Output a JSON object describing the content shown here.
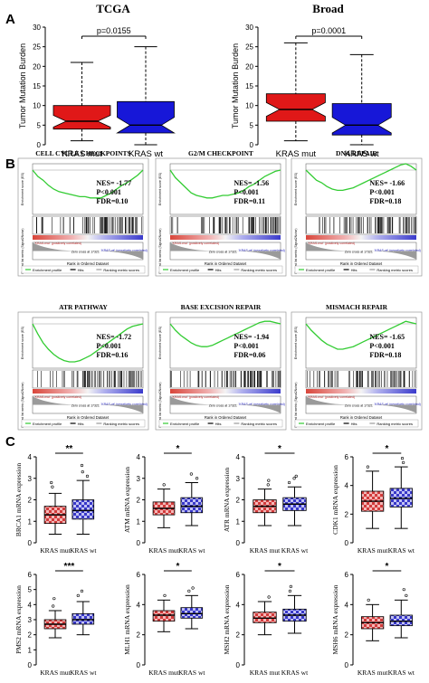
{
  "panel_letters": {
    "a": "A",
    "b": "B",
    "c": "C"
  },
  "colors": {
    "mut": "#e01818",
    "wt": "#1717d8",
    "gsea_line": "#33cc33",
    "hit": "#111111",
    "heat_red": "#d9463b",
    "heat_blue": "#3a3acc"
  },
  "chart_data": [
    {
      "id": "a1",
      "type": "box",
      "title": "TCGA",
      "ylabel": "Tumor Mutation Burden",
      "categories": [
        "KRAS mut",
        "KRAS wt"
      ],
      "ylim": [
        0,
        30
      ],
      "yticks": [
        0,
        5,
        10,
        15,
        20,
        25,
        30
      ],
      "annotation": "p=0.0155",
      "series": [
        {
          "category": "KRAS mut",
          "min": 1,
          "q1": 4,
          "median": 6,
          "q3": 10,
          "max": 21
        },
        {
          "category": "KRAS wt",
          "min": 0,
          "q1": 3,
          "median": 5,
          "q3": 11,
          "max": 25
        }
      ]
    },
    {
      "id": "a2",
      "type": "box",
      "title": "Broad",
      "ylabel": "Tumor Mutation Burden",
      "categories": [
        "KRAS mut",
        "KRAS wt"
      ],
      "ylim": [
        0,
        30
      ],
      "yticks": [
        0,
        5,
        10,
        15,
        20,
        25,
        30
      ],
      "annotation": "p=0.0001",
      "series": [
        {
          "category": "KRAS mut",
          "min": 1,
          "q1": 6,
          "median": 9,
          "q3": 13,
          "max": 26
        },
        {
          "category": "KRAS wt",
          "min": 0,
          "q1": 2.5,
          "median": 5,
          "q3": 10.5,
          "max": 23
        }
      ]
    },
    {
      "id": "b1",
      "type": "line",
      "title": "CELL CYCLE CHECKPOINTS",
      "nes": "NES= -1.77",
      "p": "P<0.001",
      "fdr": "FDR=0.10",
      "ylabel": "Enrichment score (ES)",
      "xlabel": "Rank in Ordered Dataset",
      "ylabel2": "Ranked list metric (Signal2Noise)",
      "heat_left": "'KRAS-mut' (positively correlated)",
      "heat_right": "'KRAS-wt' (negatively correlated)",
      "zero_label": "Zero cross at 17321",
      "legend": [
        "Enrichment profile",
        "Hits",
        "Ranking metric scores"
      ],
      "es": [
        0,
        0.05,
        0.08,
        0.12,
        0.15,
        0.17,
        0.18,
        0.19,
        0.2,
        0.21,
        0.21,
        0.22,
        0.22,
        0.22,
        0.2,
        0.18,
        0.15,
        0.12,
        0.1,
        0.07,
        0.04,
        0.0
      ]
    },
    {
      "id": "b2",
      "type": "line",
      "title": "G2/M CHECKPOINT",
      "nes": "NES= -1.56",
      "p": "P<0.001",
      "fdr": "FDR=0.11",
      "ylabel": "Enrichment score (ES)",
      "xlabel": "Rank in Ordered Dataset",
      "ylabel2": "Ranked list metric (Signal2Noise)",
      "heat_left": "'KRAS-mut' (positively correlated)",
      "heat_right": "'KRAS-wt' (negatively correlated)",
      "zero_label": "Zero cross at 17321",
      "legend": [
        "Enrichment profile",
        "Hits",
        "Ranking metric scores"
      ],
      "es": [
        0,
        0.06,
        0.1,
        0.14,
        0.18,
        0.2,
        0.21,
        0.22,
        0.22,
        0.21,
        0.2,
        0.2,
        0.19,
        0.18,
        0.16,
        0.13,
        0.11,
        0.08,
        0.05,
        0.03,
        0.01,
        0.0
      ]
    },
    {
      "id": "b3",
      "type": "line",
      "title": "DNA REPAIR",
      "nes": "NES= -1.66",
      "p": "P<0.001",
      "fdr": "FDR=0.18",
      "ylabel": "Enrichment score (ES)",
      "xlabel": "Rank in Ordered Dataset",
      "ylabel2": "Ranked list metric (Signal2Noise)",
      "heat_left": "'KRAS-mut' (positively correlated)",
      "heat_right": "'KRAS-wt' (negatively correlated)",
      "zero_label": "Zero cross at 17321",
      "legend": [
        "Enrichment profile",
        "Hits",
        "Ranking metric scores"
      ],
      "es": [
        0,
        0.04,
        0.08,
        0.1,
        0.13,
        0.15,
        0.16,
        0.16,
        0.15,
        0.14,
        0.12,
        0.1,
        0.08,
        0.06,
        0.04,
        0.02,
        0.0,
        -0.02,
        -0.04,
        -0.05,
        -0.03,
        0.0
      ]
    },
    {
      "id": "b4",
      "type": "line",
      "title": "ATR PATHWAY",
      "nes": "NES= -1.72",
      "p": "P<0.001",
      "fdr": "FDR=0.16",
      "ylabel": "Enrichment score (ES)",
      "xlabel": "Rank in Ordered Dataset",
      "ylabel2": "Ranked list metric (Signal2Noise)",
      "heat_left": "'KRAS-mut' (positively correlated)",
      "heat_right": "'KRAS-wt' (negatively correlated)",
      "zero_label": "Zero cross at 17321",
      "legend": [
        "Enrichment profile",
        "Hits",
        "Ranking metric scores"
      ],
      "es": [
        0,
        0.08,
        0.15,
        0.2,
        0.24,
        0.27,
        0.29,
        0.3,
        0.3,
        0.29,
        0.27,
        0.25,
        0.22,
        0.19,
        0.16,
        0.13,
        0.1,
        0.07,
        0.04,
        0.02,
        0.01,
        0.0
      ]
    },
    {
      "id": "b5",
      "type": "line",
      "title": "BASE EXCISION REPAIR",
      "nes": "NES= -1.94",
      "p": "P<0.001",
      "fdr": "FDR=0.06",
      "ylabel": "Enrichment score (ES)",
      "xlabel": "Rank in Ordered Dataset",
      "ylabel2": "Ranked list metric (Signal2Noise)",
      "heat_left": "'KRAS-mut' (positively correlated)",
      "heat_right": "'KRAS-wt' (negatively correlated)",
      "zero_label": "Zero cross at 17321",
      "legend": [
        "Enrichment profile",
        "Hits",
        "Ranking metric scores"
      ],
      "es": [
        0,
        0.05,
        0.09,
        0.12,
        0.15,
        0.17,
        0.18,
        0.18,
        0.17,
        0.15,
        0.13,
        0.11,
        0.09,
        0.07,
        0.05,
        0.03,
        0.01,
        -0.01,
        -0.02,
        -0.02,
        -0.01,
        0.0
      ]
    },
    {
      "id": "b6",
      "type": "line",
      "title": "MISMACH REPAIR",
      "nes": "NES= -1.65",
      "p": "P<0.001",
      "fdr": "FDR=0.18",
      "ylabel": "Enrichment score (ES)",
      "xlabel": "Rank in Ordered Dataset",
      "ylabel2": "Ranked list metric (Signal2Noise)",
      "heat_left": "'KRAS-mut' (positively correlated)",
      "heat_right": "'KRAS-wt' (negatively correlated)",
      "zero_label": "Zero cross at 17321",
      "legend": [
        "Enrichment profile",
        "Hits",
        "Ranking metric scores"
      ],
      "es": [
        0,
        0.05,
        0.09,
        0.13,
        0.16,
        0.18,
        0.2,
        0.2,
        0.19,
        0.18,
        0.16,
        0.14,
        0.12,
        0.1,
        0.08,
        0.06,
        0.04,
        0.02,
        0.0,
        -0.02,
        -0.01,
        0.0
      ]
    },
    {
      "id": "c1",
      "type": "box",
      "ylabel": "BRCA1 mRNA expression",
      "sig": "**",
      "categories": [
        "KRAS mut",
        "KRAS wt"
      ],
      "ylim": [
        0,
        4
      ],
      "yticks": [
        0,
        1,
        2,
        3,
        4
      ],
      "series": [
        {
          "category": "KRAS mut",
          "min": 0.4,
          "q1": 0.9,
          "median": 1.3,
          "q3": 1.7,
          "max": 2.3,
          "outliers": [
            2.6,
            2.8
          ]
        },
        {
          "category": "KRAS wt",
          "min": 0.4,
          "q1": 1.1,
          "median": 1.5,
          "q3": 2.0,
          "max": 2.9,
          "outliers": [
            3.1,
            3.3,
            3.6
          ]
        }
      ]
    },
    {
      "id": "c2",
      "type": "box",
      "ylabel": "ATM mRNA expression",
      "sig": "*",
      "categories": [
        "KRAS mut",
        "KRAS wt"
      ],
      "ylim": [
        0,
        4
      ],
      "yticks": [
        0,
        1,
        2,
        3,
        4
      ],
      "series": [
        {
          "category": "KRAS mut",
          "min": 0.7,
          "q1": 1.3,
          "median": 1.6,
          "q3": 1.9,
          "max": 2.5,
          "outliers": [
            2.7
          ]
        },
        {
          "category": "KRAS wt",
          "min": 0.8,
          "q1": 1.4,
          "median": 1.7,
          "q3": 2.1,
          "max": 2.8,
          "outliers": [
            3.0,
            3.2
          ]
        }
      ]
    },
    {
      "id": "c3",
      "type": "box",
      "ylabel": "ATR mRNA expression",
      "sig": "*",
      "categories": [
        "KRAS mut",
        "KRAS wt"
      ],
      "ylim": [
        0,
        4
      ],
      "yticks": [
        0,
        1,
        2,
        3,
        4
      ],
      "series": [
        {
          "category": "KRAS mut",
          "min": 0.8,
          "q1": 1.4,
          "median": 1.7,
          "q3": 2.0,
          "max": 2.5,
          "outliers": [
            2.7,
            2.9
          ]
        },
        {
          "category": "KRAS wt",
          "min": 0.8,
          "q1": 1.5,
          "median": 1.8,
          "q3": 2.1,
          "max": 2.6,
          "outliers": [
            2.8,
            3.0,
            3.1
          ]
        }
      ]
    },
    {
      "id": "c4",
      "type": "box",
      "ylabel": "CDK1 mRNA expression",
      "sig": "*",
      "categories": [
        "KRAS mut",
        "KRAS wt"
      ],
      "ylim": [
        0,
        6
      ],
      "yticks": [
        0,
        2,
        4,
        6
      ],
      "series": [
        {
          "category": "KRAS mut",
          "min": 1.0,
          "q1": 2.2,
          "median": 2.9,
          "q3": 3.6,
          "max": 5.0,
          "outliers": [
            5.3
          ]
        },
        {
          "category": "KRAS wt",
          "min": 1.0,
          "q1": 2.5,
          "median": 3.1,
          "q3": 3.8,
          "max": 5.3,
          "outliers": [
            5.6,
            5.9
          ]
        }
      ]
    },
    {
      "id": "c5",
      "type": "box",
      "ylabel": "PMS2 mRNA expression",
      "sig": "***",
      "categories": [
        "KRAS mut",
        "KRAS wt"
      ],
      "ylim": [
        0,
        6
      ],
      "yticks": [
        0,
        1,
        2,
        3,
        4,
        5,
        6
      ],
      "series": [
        {
          "category": "KRAS mut",
          "min": 1.8,
          "q1": 2.4,
          "median": 2.7,
          "q3": 3.0,
          "max": 3.6,
          "outliers": [
            3.9,
            4.4
          ]
        },
        {
          "category": "KRAS wt",
          "min": 2.0,
          "q1": 2.7,
          "median": 3.0,
          "q3": 3.4,
          "max": 4.2,
          "outliers": [
            4.6,
            4.9
          ]
        }
      ]
    },
    {
      "id": "c6",
      "type": "box",
      "ylabel": "MLH1 mRNA expression",
      "sig": "*",
      "categories": [
        "KRAS mut",
        "KRAS wt"
      ],
      "ylim": [
        0,
        6
      ],
      "yticks": [
        0,
        2,
        4,
        6
      ],
      "series": [
        {
          "category": "KRAS mut",
          "min": 2.2,
          "q1": 2.9,
          "median": 3.3,
          "q3": 3.6,
          "max": 4.3,
          "outliers": [
            4.6
          ]
        },
        {
          "category": "KRAS wt",
          "min": 2.4,
          "q1": 3.1,
          "median": 3.4,
          "q3": 3.8,
          "max": 4.6,
          "outliers": [
            4.9,
            5.1
          ]
        }
      ]
    },
    {
      "id": "c7",
      "type": "box",
      "ylabel": "MSH2 mRNA expression",
      "sig": "*",
      "categories": [
        "KRAS mut",
        "KRAS wt"
      ],
      "ylim": [
        0,
        6
      ],
      "yticks": [
        0,
        2,
        4,
        6
      ],
      "series": [
        {
          "category": "KRAS mut",
          "min": 2.0,
          "q1": 2.8,
          "median": 3.1,
          "q3": 3.5,
          "max": 4.2,
          "outliers": [
            4.5
          ]
        },
        {
          "category": "KRAS wt",
          "min": 2.1,
          "q1": 2.9,
          "median": 3.3,
          "q3": 3.7,
          "max": 4.6,
          "outliers": [
            4.9,
            5.2
          ]
        }
      ]
    },
    {
      "id": "c8",
      "type": "box",
      "ylabel": "MSH6 mRNA expression",
      "sig": "*",
      "categories": [
        "KRAS mut",
        "KRAS wt"
      ],
      "ylim": [
        0,
        6
      ],
      "yticks": [
        0,
        2,
        4,
        6
      ],
      "series": [
        {
          "category": "KRAS mut",
          "min": 1.6,
          "q1": 2.4,
          "median": 2.8,
          "q3": 3.2,
          "max": 4.0,
          "outliers": [
            4.3
          ]
        },
        {
          "category": "KRAS wt",
          "min": 1.8,
          "q1": 2.6,
          "median": 2.9,
          "q3": 3.3,
          "max": 4.3,
          "outliers": [
            4.6,
            5.0
          ]
        }
      ]
    }
  ]
}
